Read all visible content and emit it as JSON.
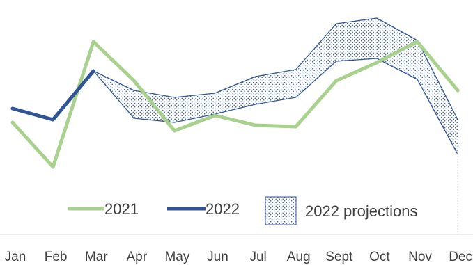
{
  "chart_data": {
    "type": "line",
    "categories": [
      "Jan",
      "Feb",
      "Mar",
      "Apr",
      "May",
      "Jun",
      "Jul",
      "Aug",
      "Sept",
      "Oct",
      "Nov",
      "Dec"
    ],
    "series": [
      {
        "name": "2021",
        "color": "#a9d18e",
        "values": [
          52,
          20,
          110,
          82,
          46,
          57,
          50,
          49,
          82,
          95,
          110,
          75
        ]
      },
      {
        "name": "2022",
        "color": "#2f5597",
        "values": [
          62,
          54,
          89,
          null,
          null,
          null,
          null,
          null,
          null,
          null,
          null,
          null
        ]
      }
    ],
    "projection_band": {
      "name": "2022 projections",
      "color": "#2f5597",
      "fill_pattern": "dots",
      "upper": [
        null,
        null,
        89,
        75,
        70,
        73,
        85,
        90,
        123,
        127,
        111,
        54
      ],
      "lower": [
        null,
        null,
        89,
        55,
        52,
        58,
        65,
        70,
        96,
        98,
        83,
        29
      ]
    },
    "ylim": [
      0,
      135
    ],
    "legend": {
      "placement": "bottom",
      "entries": [
        "2021",
        "2022",
        "2022 projections"
      ]
    },
    "grid": false,
    "title": "",
    "xlabel": "",
    "ylabel": ""
  }
}
